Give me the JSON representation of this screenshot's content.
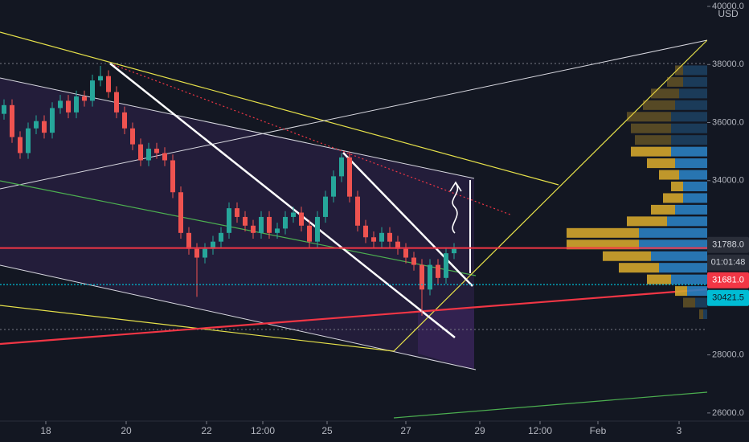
{
  "chart_data": {
    "type": "candlestick",
    "currency": "USD",
    "up_color": "#26a69a",
    "down_color": "#ef5350",
    "xlim": [
      -1.14,
      16.46
    ],
    "ylim": [
      25720,
      40220
    ],
    "xticks": [
      {
        "value": 0,
        "label": "18"
      },
      {
        "value": 2,
        "label": "20"
      },
      {
        "value": 4,
        "label": "22"
      },
      {
        "value": 5.4,
        "label": "12:00"
      },
      {
        "value": 7,
        "label": "25"
      },
      {
        "value": 8.96,
        "label": "27"
      },
      {
        "value": 10.8,
        "label": "29"
      },
      {
        "value": 12.3,
        "label": "12:00"
      },
      {
        "value": 13.74,
        "label": "Feb"
      },
      {
        "value": 15.76,
        "label": "3"
      }
    ],
    "yticks": [
      {
        "value": 40000,
        "label": "40000.0"
      },
      {
        "value": 38000,
        "label": "38000.0"
      },
      {
        "value": 36000,
        "label": "36000.0"
      },
      {
        "value": 34000,
        "label": "34000.0"
      },
      {
        "value": 28000,
        "label": "28000.0"
      },
      {
        "value": 26000,
        "label": "26000.0"
      }
    ],
    "x": [
      -1.04,
      -0.84,
      -0.64,
      -0.44,
      -0.24,
      -0.04,
      0.16,
      0.36,
      0.56,
      0.76,
      0.96,
      1.16,
      1.36,
      1.56,
      1.76,
      1.96,
      2.16,
      2.36,
      2.56,
      2.76,
      2.96,
      3.16,
      3.36,
      3.56,
      3.76,
      3.96,
      4.16,
      4.36,
      4.56,
      4.76,
      4.96,
      5.16,
      5.36,
      5.56,
      5.76,
      5.96,
      6.16,
      6.36,
      6.56,
      6.76,
      6.96,
      7.16,
      7.36,
      7.56,
      7.76,
      7.96,
      8.16,
      8.36,
      8.56,
      8.76,
      8.96,
      9.16,
      9.36,
      9.56,
      9.76,
      9.96,
      10.16
    ],
    "open": [
      36300,
      36600,
      35500,
      34950,
      35800,
      36050,
      35650,
      36500,
      36750,
      36350,
      36900,
      36750,
      37450,
      37600,
      37050,
      36350,
      35800,
      35250,
      34700,
      35100,
      34950,
      34700,
      33600,
      32200,
      31650,
      31350,
      31650,
      31900,
      32200,
      33050,
      32750,
      32450,
      32200,
      32750,
      32200,
      32350,
      32750,
      32900,
      32450,
      31900,
      32750,
      33450,
      34150,
      34800,
      33450,
      32450,
      32050,
      31900,
      32200,
      31900,
      31650,
      31350,
      31100,
      30250,
      31100,
      30650,
      31500
    ],
    "high": [
      36800,
      36800,
      35700,
      36000,
      36250,
      36250,
      36700,
      36950,
      36950,
      37100,
      37100,
      37650,
      37950,
      37800,
      37250,
      36550,
      36000,
      35450,
      35300,
      35300,
      35150,
      34900,
      33800,
      32400,
      31850,
      31850,
      32100,
      32400,
      33250,
      33250,
      32950,
      32650,
      32950,
      32950,
      32550,
      32950,
      33100,
      33100,
      32650,
      32950,
      33650,
      34350,
      34950,
      35000,
      33650,
      32650,
      32250,
      32400,
      32400,
      32100,
      31850,
      31550,
      31300,
      31300,
      31300,
      31700,
      31850
    ],
    "low": [
      36100,
      35300,
      34750,
      34750,
      35600,
      35450,
      35450,
      36300,
      36150,
      36150,
      36550,
      36550,
      37250,
      36850,
      36150,
      35600,
      35050,
      34500,
      34500,
      34750,
      34500,
      33400,
      32000,
      31450,
      30000,
      31150,
      31450,
      31700,
      32000,
      32550,
      32250,
      32000,
      32000,
      32000,
      32000,
      32150,
      32550,
      32250,
      31700,
      31700,
      32550,
      33250,
      33950,
      33250,
      32250,
      31850,
      31700,
      31700,
      31700,
      31450,
      31150,
      30900,
      29350,
      30050,
      30450,
      30450,
      31300
    ],
    "close": [
      36600,
      35500,
      34950,
      35800,
      36050,
      35650,
      36500,
      36750,
      36350,
      36900,
      36750,
      37450,
      37600,
      37050,
      36350,
      35800,
      35250,
      34700,
      35100,
      34950,
      34700,
      33600,
      32200,
      31650,
      31350,
      31650,
      31900,
      32200,
      33050,
      32750,
      32450,
      32200,
      32750,
      32200,
      32350,
      32750,
      32900,
      32450,
      31900,
      32750,
      33450,
      34150,
      34800,
      33450,
      32450,
      32050,
      31900,
      32200,
      31900,
      31650,
      31350,
      31100,
      30250,
      31100,
      30650,
      31500,
      31650
    ],
    "price_tags": [
      {
        "value": 31788,
        "label": "31788.0",
        "color": "#2a2e39",
        "text_color": "#d1d4dc"
      },
      {
        "value": 31681,
        "label": "31681.0",
        "color": "#f23645",
        "text_color": "#ffffff"
      },
      {
        "value": 30421.5,
        "label": "30421.5",
        "color": "#00bcd4",
        "text_color": "#131722"
      }
    ],
    "countdown": "01:01:48",
    "volume_profile": {
      "prices": [
        37800,
        37400,
        37000,
        36600,
        36200,
        35800,
        35400,
        35000,
        34600,
        34200,
        33800,
        33400,
        33000,
        32600,
        32200,
        31800,
        31400,
        31000,
        30600,
        30200,
        29800,
        29400
      ],
      "buy": [
        30,
        30,
        35,
        40,
        45,
        45,
        45,
        45,
        40,
        35,
        30,
        30,
        40,
        50,
        85,
        85,
        70,
        60,
        45,
        25,
        15,
        5
      ],
      "sell": [
        10,
        20,
        35,
        40,
        55,
        50,
        45,
        50,
        35,
        25,
        15,
        25,
        30,
        50,
        90,
        90,
        60,
        50,
        30,
        15,
        15,
        5
      ],
      "buy_color": "#2b7fc1",
      "sell_color": "#d3a52c",
      "value_area": [
        30000,
        35200
      ]
    }
  }
}
